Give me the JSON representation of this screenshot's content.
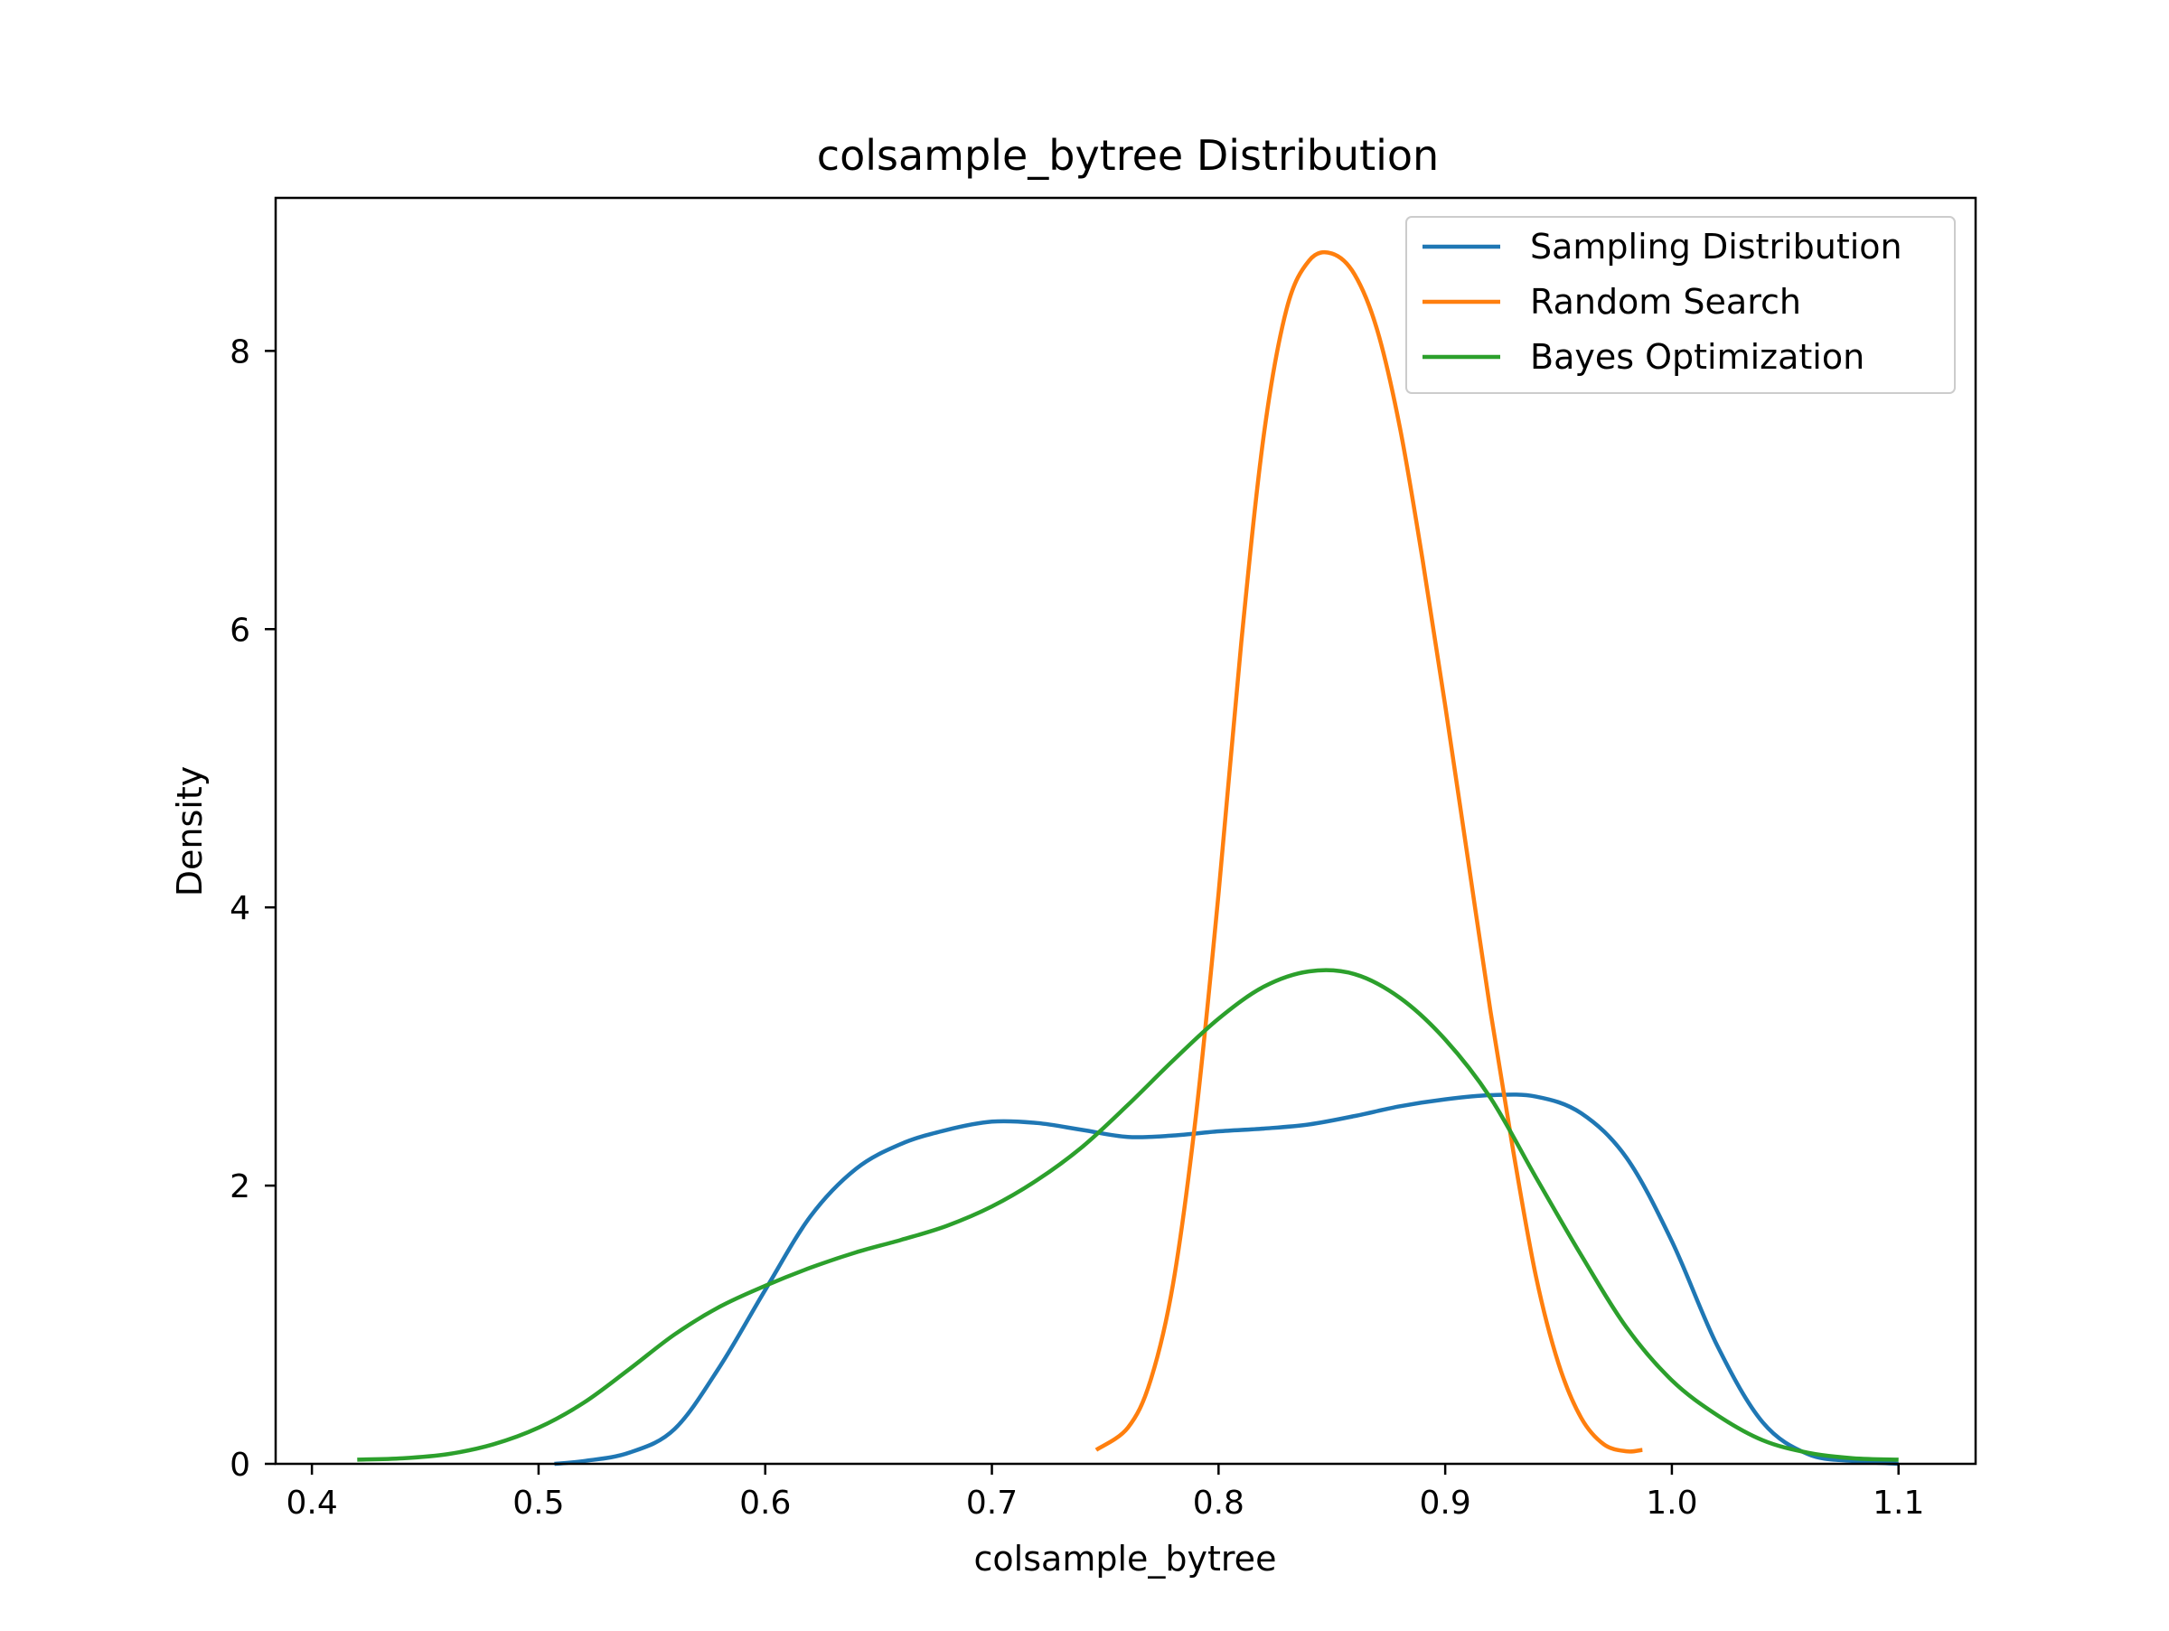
{
  "chart_data": {
    "type": "line",
    "title": "colsample_bytree Distribution",
    "xlabel": "colsample_bytree",
    "ylabel": "Density",
    "xlim": [
      0.384,
      1.134
    ],
    "ylim": [
      0,
      9.1
    ],
    "xticks": [
      0.4,
      0.5,
      0.6,
      0.7,
      0.8,
      0.9,
      1.0,
      1.1
    ],
    "xtick_labels": [
      "0.4",
      "0.5",
      "0.6",
      "0.7",
      "0.8",
      "0.9",
      "1.0",
      "1.1"
    ],
    "yticks": [
      0,
      2,
      4,
      6,
      8
    ],
    "ytick_labels": [
      "0",
      "2",
      "4",
      "6",
      "8"
    ],
    "grid": false,
    "legend_position": "top-right",
    "series": [
      {
        "name": "Sampling Distribution",
        "color": "#1f77b4",
        "points": [
          [
            0.507,
            0.0
          ],
          [
            0.52,
            0.02
          ],
          [
            0.54,
            0.08
          ],
          [
            0.56,
            0.25
          ],
          [
            0.58,
            0.7
          ],
          [
            0.6,
            1.25
          ],
          [
            0.62,
            1.78
          ],
          [
            0.64,
            2.12
          ],
          [
            0.66,
            2.3
          ],
          [
            0.68,
            2.4
          ],
          [
            0.7,
            2.46
          ],
          [
            0.72,
            2.45
          ],
          [
            0.74,
            2.4
          ],
          [
            0.76,
            2.35
          ],
          [
            0.78,
            2.36
          ],
          [
            0.8,
            2.39
          ],
          [
            0.82,
            2.41
          ],
          [
            0.84,
            2.44
          ],
          [
            0.86,
            2.5
          ],
          [
            0.88,
            2.57
          ],
          [
            0.9,
            2.62
          ],
          [
            0.92,
            2.65
          ],
          [
            0.94,
            2.64
          ],
          [
            0.96,
            2.52
          ],
          [
            0.98,
            2.2
          ],
          [
            1.0,
            1.6
          ],
          [
            1.02,
            0.85
          ],
          [
            1.04,
            0.3
          ],
          [
            1.06,
            0.07
          ],
          [
            1.08,
            0.02
          ],
          [
            1.1,
            0.0
          ]
        ]
      },
      {
        "name": "Random Search",
        "color": "#ff7f0e",
        "points": [
          [
            0.746,
            0.1
          ],
          [
            0.76,
            0.26
          ],
          [
            0.77,
            0.6
          ],
          [
            0.78,
            1.3
          ],
          [
            0.79,
            2.5
          ],
          [
            0.8,
            4.1
          ],
          [
            0.81,
            5.9
          ],
          [
            0.82,
            7.4
          ],
          [
            0.83,
            8.3
          ],
          [
            0.84,
            8.65
          ],
          [
            0.85,
            8.7
          ],
          [
            0.86,
            8.55
          ],
          [
            0.87,
            8.15
          ],
          [
            0.88,
            7.45
          ],
          [
            0.89,
            6.5
          ],
          [
            0.9,
            5.45
          ],
          [
            0.91,
            4.35
          ],
          [
            0.92,
            3.25
          ],
          [
            0.93,
            2.25
          ],
          [
            0.94,
            1.35
          ],
          [
            0.95,
            0.72
          ],
          [
            0.96,
            0.33
          ],
          [
            0.97,
            0.14
          ],
          [
            0.98,
            0.09
          ],
          [
            0.987,
            0.1
          ]
        ]
      },
      {
        "name": "Bayes Optimization",
        "color": "#2ca02c",
        "points": [
          [
            0.42,
            0.03
          ],
          [
            0.44,
            0.04
          ],
          [
            0.46,
            0.07
          ],
          [
            0.48,
            0.14
          ],
          [
            0.5,
            0.26
          ],
          [
            0.52,
            0.44
          ],
          [
            0.54,
            0.68
          ],
          [
            0.56,
            0.93
          ],
          [
            0.58,
            1.13
          ],
          [
            0.6,
            1.28
          ],
          [
            0.62,
            1.41
          ],
          [
            0.64,
            1.52
          ],
          [
            0.66,
            1.61
          ],
          [
            0.68,
            1.71
          ],
          [
            0.7,
            1.85
          ],
          [
            0.72,
            2.04
          ],
          [
            0.74,
            2.28
          ],
          [
            0.76,
            2.58
          ],
          [
            0.78,
            2.9
          ],
          [
            0.8,
            3.2
          ],
          [
            0.82,
            3.43
          ],
          [
            0.84,
            3.54
          ],
          [
            0.86,
            3.52
          ],
          [
            0.88,
            3.35
          ],
          [
            0.9,
            3.05
          ],
          [
            0.92,
            2.63
          ],
          [
            0.94,
            2.06
          ],
          [
            0.96,
            1.5
          ],
          [
            0.98,
            0.98
          ],
          [
            1.0,
            0.6
          ],
          [
            1.02,
            0.35
          ],
          [
            1.04,
            0.17
          ],
          [
            1.06,
            0.08
          ],
          [
            1.08,
            0.04
          ],
          [
            1.1,
            0.03
          ]
        ]
      }
    ]
  }
}
